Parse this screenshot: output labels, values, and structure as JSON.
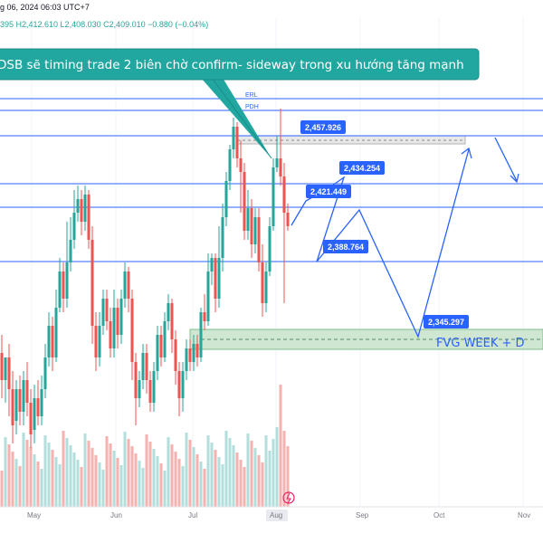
{
  "header": {
    "ohlc_text": "g 06, 2024 06:03 UTC+7",
    "ohlc_values": "395  H2,412.610  L2,408.030  C2,409.010  −0.880 (−0.04%)"
  },
  "callout": {
    "text": "DSB sẽ timing trade 2 biên chờ confirm- sideway trong xu hướng tăng mạnh"
  },
  "levels": {
    "erl_label": "ERL",
    "pdh_label": "PDH"
  },
  "zone": {
    "fvg_label": "FVG WEEK + D"
  },
  "price_tags": [
    {
      "id": "tag-2457",
      "text": "2,457.926",
      "value": 2457.926
    },
    {
      "id": "tag-2434",
      "text": "2,434.254",
      "value": 2434.254
    },
    {
      "id": "tag-2421",
      "text": "2,421.449",
      "value": 2421.449
    },
    {
      "id": "tag-2388",
      "text": "2,388.764",
      "value": 2388.764
    },
    {
      "id": "tag-2345",
      "text": "2,345.297",
      "value": 2345.297
    }
  ],
  "x_axis": {
    "ticks": [
      "May",
      "Jun",
      "Jul",
      "Aug",
      "Sep",
      "Oct",
      "Nov"
    ]
  },
  "colors": {
    "up": "#26a69a",
    "down": "#ef5350",
    "up_volume": "#b2dfdb",
    "down_volume": "#f7b2b0",
    "level_line": "#2962ff",
    "tag_bg": "#2962ff",
    "callout_bg": "#22a6a0",
    "zone_fill": "#cfe6d2"
  },
  "chart_data": {
    "type": "candlestick",
    "title": "",
    "x": [
      "May",
      "Jun",
      "Jul",
      "Aug",
      "Sep",
      "Oct",
      "Nov"
    ],
    "levels": [
      2457.926,
      2434.254,
      2421.449,
      2388.764,
      2345.297
    ],
    "projection_path": [
      2421.449,
      2434.254,
      2388.764,
      2345.297,
      2457.926
    ]
  }
}
